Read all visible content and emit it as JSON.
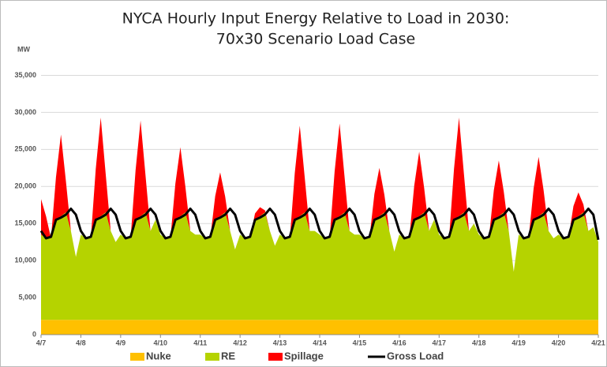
{
  "chart_data": {
    "type": "stacked-area",
    "title": [
      "NYCA Hourly Input Energy Relative to Load in 2030:",
      "70x30 Scenario Load Case"
    ],
    "y_label": "MW",
    "categories": [
      "4/7",
      null,
      null,
      null,
      null,
      null,
      null,
      null,
      "4/8",
      null,
      null,
      null,
      null,
      null,
      null,
      null,
      "4/9",
      null,
      null,
      null,
      null,
      null,
      null,
      null,
      "4/10",
      null,
      null,
      null,
      null,
      null,
      null,
      null,
      "4/11",
      null,
      null,
      null,
      null,
      null,
      null,
      null,
      "4/12",
      null,
      null,
      null,
      null,
      null,
      null,
      null,
      "4/13",
      null,
      null,
      null,
      null,
      null,
      null,
      null,
      "4/14",
      null,
      null,
      null,
      null,
      null,
      null,
      null,
      "4/15",
      null,
      null,
      null,
      null,
      null,
      null,
      null,
      "4/16",
      null,
      null,
      null,
      null,
      null,
      null,
      null,
      "4/17",
      null,
      null,
      null,
      null,
      null,
      null,
      null,
      "4/18",
      null,
      null,
      null,
      null,
      null,
      null,
      null,
      "4/19",
      null,
      null,
      null,
      null,
      null,
      null,
      null,
      "4/20",
      null,
      null,
      null,
      null,
      null,
      null,
      null,
      "4/21"
    ],
    "ylim": [
      0,
      37500
    ],
    "yticks": [
      0,
      {
        "value": 5000,
        "label": "5,000"
      },
      {
        "value": 10000,
        "label": "10,000"
      },
      {
        "value": 15000,
        "label": "15,000"
      },
      {
        "value": 20000,
        "label": "20,000"
      },
      {
        "value": 25000,
        "label": "25,000"
      },
      {
        "value": 30000,
        "label": "30,000"
      },
      {
        "value": 35000,
        "label": "35,000"
      }
    ],
    "grid": true,
    "legend": "bottom",
    "series": [
      {
        "name": "Nuke",
        "color": "#ffc000",
        "kind": "area",
        "values": [
          2000,
          2000,
          2000,
          2000,
          2000,
          2000,
          2000,
          2000,
          2000,
          2000,
          2000,
          2000,
          2000,
          2000,
          2000,
          2000,
          2000,
          2000,
          2000,
          2000,
          2000,
          2000,
          2000,
          2000,
          2000,
          2000,
          2000,
          2000,
          2000,
          2000,
          2000,
          2000,
          2000,
          2000,
          2000,
          2000,
          2000,
          2000,
          2000,
          2000,
          2000,
          2000,
          2000,
          2000,
          2000,
          2000,
          2000,
          2000,
          2000,
          2000,
          2000,
          2000,
          2000,
          2000,
          2000,
          2000,
          2000,
          2000,
          2000,
          2000,
          2000,
          2000,
          2000,
          2000,
          2000,
          2000,
          2000,
          2000,
          2000,
          2000,
          2000,
          2000,
          2000,
          2000,
          2000,
          2000,
          2000,
          2000,
          2000,
          2000,
          2000,
          2000,
          2000,
          2000,
          2000,
          2000,
          2000,
          2000,
          2000,
          2000,
          2000,
          2000,
          2000,
          2000,
          2000,
          2000,
          2000,
          2000,
          2000,
          2000,
          2000,
          2000,
          2000,
          2000,
          2000,
          2000,
          2000,
          2000,
          2000,
          2000,
          2000,
          2000,
          2000
        ]
      },
      {
        "name": "RE",
        "color": "#b5d300",
        "kind": "area",
        "values": [
          11500,
          11000,
          11000,
          13500,
          14000,
          14500,
          12000,
          8500,
          11500,
          11000,
          11000,
          13500,
          14000,
          14500,
          12000,
          10500,
          11500,
          11000,
          11000,
          13500,
          14000,
          14500,
          12000,
          13500,
          11500,
          11000,
          11000,
          13500,
          14000,
          14500,
          12000,
          11500,
          11500,
          11000,
          11000,
          13500,
          14000,
          14500,
          12000,
          9500,
          11500,
          11000,
          11000,
          13500,
          14000,
          14500,
          12000,
          10000,
          11500,
          11000,
          11000,
          13500,
          14000,
          14500,
          12000,
          12000,
          11500,
          11000,
          11000,
          13500,
          14000,
          14500,
          12000,
          11500,
          11500,
          11000,
          11000,
          13500,
          14000,
          14500,
          12000,
          9200,
          11500,
          11000,
          11000,
          13500,
          14000,
          14500,
          12000,
          13500,
          11500,
          11000,
          11000,
          13500,
          14000,
          14500,
          12000,
          13000,
          11500,
          11000,
          11000,
          13500,
          14000,
          14500,
          12000,
          6500,
          11500,
          11000,
          11000,
          13500,
          14000,
          14500,
          12000,
          11000,
          11500,
          11000,
          11000,
          13500,
          14000,
          14500,
          12000,
          12500,
          10500
        ]
      },
      {
        "name": "Spillage",
        "color": "#ff0000",
        "kind": "area",
        "values": [
          4800,
          3000,
          0,
          5750,
          11000,
          4200,
          0,
          0,
          0,
          0,
          0,
          6900,
          13300,
          5120,
          0,
          0,
          0,
          0,
          0,
          6700,
          12900,
          4960,
          0,
          0,
          0,
          0,
          0,
          4900,
          9300,
          3520,
          0,
          0,
          0,
          0,
          0,
          3200,
          5900,
          2160,
          0,
          0,
          0,
          0,
          0,
          850,
          1200,
          280,
          0,
          0,
          0,
          0,
          0,
          6350,
          12200,
          4680,
          0,
          0,
          0,
          0,
          0,
          6500,
          12500,
          4800,
          0,
          0,
          0,
          0,
          0,
          3500,
          6500,
          2400,
          0,
          0,
          0,
          0,
          0,
          4600,
          8700,
          3280,
          0,
          0,
          0,
          0,
          0,
          6900,
          13300,
          5120,
          0,
          0,
          0,
          0,
          0,
          4000,
          7500,
          2800,
          0,
          0,
          0,
          0,
          0,
          4250,
          8000,
          3000,
          0,
          0,
          0,
          0,
          0,
          1850,
          3200,
          1080,
          0,
          0,
          0
        ]
      },
      {
        "name": "Gross Load",
        "color": "#000000",
        "kind": "line",
        "values": [
          14000,
          13000,
          13200,
          15500,
          15800,
          16200,
          17000,
          16200,
          14000,
          13000,
          13200,
          15500,
          15800,
          16200,
          17000,
          16200,
          14000,
          13000,
          13200,
          15500,
          15800,
          16200,
          17000,
          16200,
          14000,
          13000,
          13200,
          15500,
          15800,
          16200,
          17000,
          16200,
          14000,
          13000,
          13200,
          15500,
          15800,
          16200,
          17000,
          16200,
          14000,
          13000,
          13200,
          15500,
          15800,
          16200,
          17000,
          16200,
          14000,
          13000,
          13200,
          15500,
          15800,
          16200,
          17000,
          16200,
          14000,
          13000,
          13200,
          15500,
          15800,
          16200,
          17000,
          16200,
          14000,
          13000,
          13200,
          15500,
          15800,
          16200,
          17000,
          16200,
          14000,
          13000,
          13200,
          15500,
          15800,
          16200,
          17000,
          16200,
          14000,
          13000,
          13200,
          15500,
          15800,
          16200,
          17000,
          16200,
          14000,
          13000,
          13200,
          15500,
          15800,
          16200,
          17000,
          16200,
          14000,
          13000,
          13200,
          15500,
          15800,
          16200,
          17000,
          16200,
          14000,
          13000,
          13200,
          15500,
          15800,
          16200,
          17000,
          16200,
          12800
        ]
      }
    ]
  }
}
